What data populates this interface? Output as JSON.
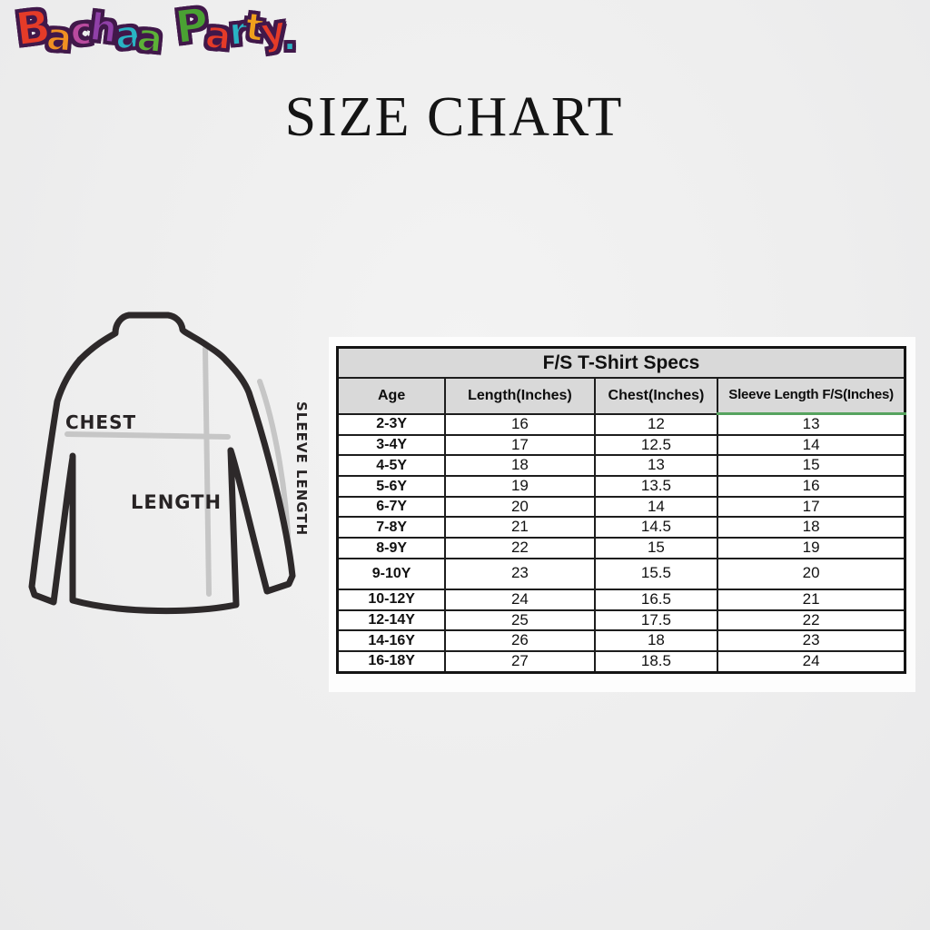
{
  "logo": {
    "text": "Bachaa Party.",
    "outline_color": "#41184a",
    "letters": [
      {
        "ch": "B",
        "color": "#e43b28"
      },
      {
        "ch": "a",
        "color": "#f09022"
      },
      {
        "ch": "c",
        "color": "#b94a9e"
      },
      {
        "ch": "h",
        "color": "#9040a8"
      },
      {
        "ch": "a",
        "color": "#29b3c4"
      },
      {
        "ch": "a",
        "color": "#5cb237"
      },
      {
        "ch": " ",
        "color": ""
      },
      {
        "ch": "P",
        "color": "#4aa233"
      },
      {
        "ch": "a",
        "color": "#e43b28"
      },
      {
        "ch": "r",
        "color": "#29b3c4"
      },
      {
        "ch": "t",
        "color": "#f0a01c"
      },
      {
        "ch": "y",
        "color": "#e43b28"
      },
      {
        "ch": ".",
        "color": "#29b3c4"
      }
    ]
  },
  "title": "SIZE CHART",
  "diagram": {
    "chest_label": "CHEST",
    "length_label": "LENGTH",
    "sleeve_label": "SLEEVE LENGTH"
  },
  "chart_data": {
    "type": "table",
    "title": "F/S T-Shirt Specs",
    "columns": [
      "Age",
      "Length(Inches)",
      "Chest(Inches)",
      "Sleeve Length F/S(Inches)"
    ],
    "rows": [
      [
        "2-3Y",
        16,
        12,
        13
      ],
      [
        "3-4Y",
        17,
        12.5,
        14
      ],
      [
        "4-5Y",
        18,
        13,
        15
      ],
      [
        "5-6Y",
        19,
        13.5,
        16
      ],
      [
        "6-7Y",
        20,
        14,
        17
      ],
      [
        "7-8Y",
        21,
        14.5,
        18
      ],
      [
        "8-9Y",
        22,
        15,
        19
      ],
      [
        "9-10Y",
        23,
        15.5,
        20
      ],
      [
        "10-12Y",
        24,
        16.5,
        21
      ],
      [
        "12-14Y",
        25,
        17.5,
        22
      ],
      [
        "14-16Y",
        26,
        18,
        23
      ],
      [
        "16-18Y",
        27,
        18.5,
        24
      ]
    ]
  }
}
